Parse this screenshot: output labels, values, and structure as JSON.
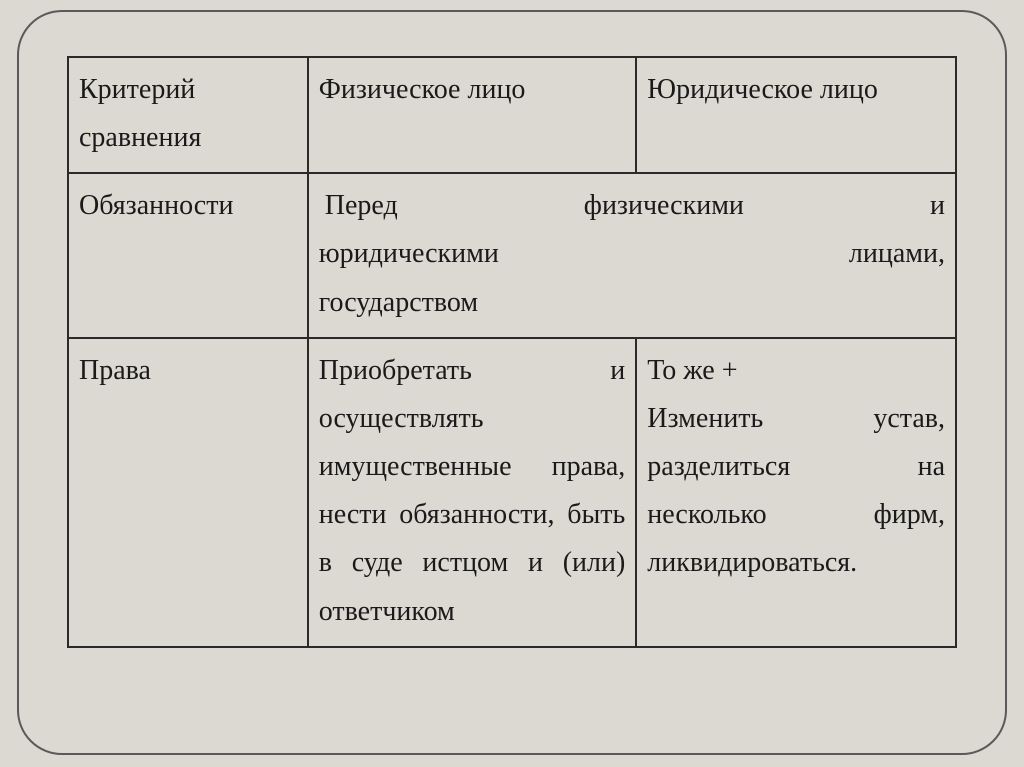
{
  "table": {
    "columns": [
      "col1",
      "col2",
      "col3"
    ],
    "column_widths_pct": [
      27,
      37,
      36
    ],
    "border_color": "#2a2a2a",
    "border_width": 2,
    "background_color": "#dcd9d2",
    "frame_border_color": "#5a5a5a",
    "frame_border_radius": 45,
    "font_family": "Times New Roman",
    "font_size": 28,
    "line_height": 1.72,
    "text_color": "#1a1a1a",
    "rows": [
      {
        "cells": [
          {
            "text": "Критерий сравнения",
            "colspan": 1,
            "align": "left"
          },
          {
            "text": "Физическое лицо",
            "colspan": 1,
            "align": "left"
          },
          {
            "text": "Юридическое лицо",
            "colspan": 1,
            "align": "left"
          }
        ]
      },
      {
        "cells": [
          {
            "text": "Обязанности",
            "colspan": 1,
            "align": "left"
          },
          {
            "text_lines": [
              "Перед физическими и",
              "юридическими лицами,",
              "государством"
            ],
            "colspan": 2,
            "align": "justify"
          }
        ]
      },
      {
        "cells": [
          {
            "text": "Права",
            "colspan": 1,
            "align": "left"
          },
          {
            "text": "Приобретать и осуществлять имущественные права, нести обязанности, быть в суде истцом и (или) ответчиком",
            "colspan": 1,
            "align": "justify"
          },
          {
            "text_lines_plain": [
              "То же +",
              "Изменить устав, разделиться на несколько фирм, ликвидироваться."
            ],
            "colspan": 1,
            "align": "justify"
          }
        ]
      }
    ]
  }
}
